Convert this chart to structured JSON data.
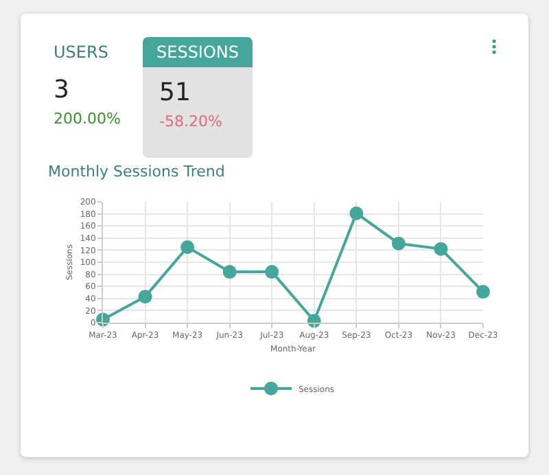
{
  "chart_data": [
    {
      "type": "other",
      "annotations": [
        "USERS",
        "3",
        "200.00%",
        "SESSIONS",
        "51",
        "-58.20%"
      ]
    },
    {
      "type": "line",
      "title": "Monthly Sessions Trend",
      "xlabel": "Month-Year",
      "ylabel": "Sessions",
      "categories": [
        "Mar-23",
        "Apr-23",
        "May-23",
        "Jun-23",
        "Jul-23",
        "Aug-23",
        "Sep-23",
        "Oct-23",
        "Nov-23",
        "Dec-23"
      ],
      "series": [
        {
          "name": "Sessions",
          "color": "#45a69c",
          "values": [
            5,
            43,
            125,
            84,
            84,
            3,
            181,
            131,
            122,
            51
          ]
        }
      ],
      "ylim": [
        0,
        200
      ],
      "yticks": [
        0,
        20,
        40,
        60,
        80,
        100,
        120,
        140,
        160,
        180,
        200
      ],
      "grid": true,
      "legend": "bottom",
      "marker": "circle",
      "line_style": "solid"
    }
  ]
}
